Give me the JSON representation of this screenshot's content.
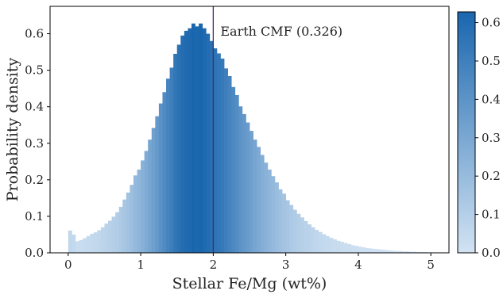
{
  "chart_data": {
    "type": "bar",
    "title": "",
    "xlabel": "Stellar Fe/Mg (wt%)",
    "ylabel": "Probability density",
    "xlim": [
      -0.25,
      5.25
    ],
    "ylim": [
      0.0,
      0.675
    ],
    "x_ticks": [
      0,
      1,
      2,
      3,
      4,
      5
    ],
    "x_tick_labels": [
      "0",
      "1",
      "2",
      "3",
      "4",
      "5"
    ],
    "y_ticks": [
      0.0,
      0.1,
      0.2,
      0.3,
      0.4,
      0.5,
      0.6
    ],
    "y_tick_labels": [
      "0.0",
      "0.1",
      "0.2",
      "0.3",
      "0.4",
      "0.5",
      "0.6"
    ],
    "grid": false,
    "legend": "none",
    "bin_start": 0.0,
    "bin_width": 0.05,
    "values": [
      0.061,
      0.05,
      0.032,
      0.035,
      0.04,
      0.046,
      0.052,
      0.056,
      0.062,
      0.07,
      0.08,
      0.088,
      0.099,
      0.111,
      0.126,
      0.146,
      0.165,
      0.186,
      0.212,
      0.228,
      0.253,
      0.279,
      0.31,
      0.342,
      0.374,
      0.409,
      0.44,
      0.477,
      0.507,
      0.545,
      0.57,
      0.595,
      0.608,
      0.615,
      0.628,
      0.62,
      0.628,
      0.615,
      0.6,
      0.58,
      0.56,
      0.546,
      0.532,
      0.505,
      0.484,
      0.454,
      0.432,
      0.401,
      0.38,
      0.357,
      0.334,
      0.31,
      0.29,
      0.268,
      0.247,
      0.228,
      0.21,
      0.193,
      0.174,
      0.162,
      0.144,
      0.131,
      0.118,
      0.107,
      0.097,
      0.087,
      0.078,
      0.07,
      0.063,
      0.057,
      0.051,
      0.046,
      0.041,
      0.037,
      0.033,
      0.03,
      0.027,
      0.024,
      0.021,
      0.019,
      0.017,
      0.015,
      0.013,
      0.012,
      0.011,
      0.01,
      0.009,
      0.008,
      0.007,
      0.006,
      0.005,
      0.005,
      0.004,
      0.004,
      0.003,
      0.003,
      0.002,
      0.002,
      0.002,
      0.001
    ],
    "reference_line": {
      "x": 2.0,
      "label": "Earth CMF (0.326)",
      "color": "#4b2b6b"
    },
    "colormap": {
      "low": "#d2e3f3",
      "high": "#1a66ae"
    },
    "colorbar": {
      "ticks": [
        0.0,
        0.1,
        0.2,
        0.3,
        0.4,
        0.5,
        0.6
      ],
      "tick_labels": [
        "0.0",
        "0.1",
        "0.2",
        "0.3",
        "0.4",
        "0.5",
        "0.6"
      ],
      "range": [
        0.0,
        0.628
      ]
    }
  }
}
